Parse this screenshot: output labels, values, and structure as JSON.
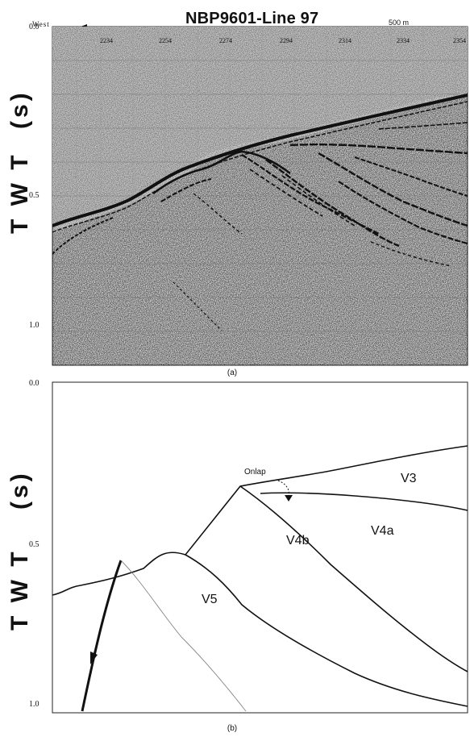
{
  "figure": {
    "title": "NBP9601-Line 97",
    "direction_label": "West",
    "scale_bar_label": "500 m",
    "trace_numbers": [
      "2234",
      "2254",
      "2274",
      "2294",
      "2314",
      "2334",
      "2354"
    ],
    "panel_a": {
      "caption": "(a)",
      "y_axis_label": "T W T",
      "y_axis_unit": "(s)",
      "y_ticks": [
        "0.0",
        "0.5",
        "1.0"
      ]
    },
    "panel_b": {
      "caption": "(b)",
      "y_axis_label": "T W T",
      "y_axis_unit": "(s)",
      "y_ticks": [
        "0.0",
        "0.5",
        "1.0"
      ],
      "annotation": "Onlap",
      "units": [
        "V3",
        "V4a",
        "V4b",
        "V5"
      ]
    }
  }
}
